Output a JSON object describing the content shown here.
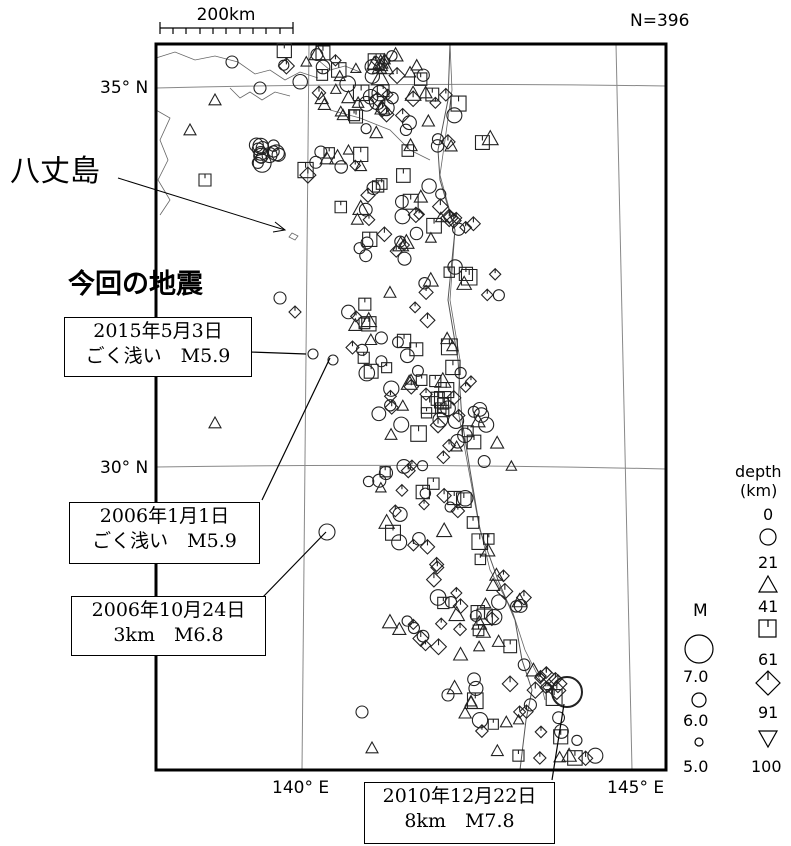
{
  "scale_bar": {
    "label": "200km"
  },
  "count_label": "N=396",
  "lat_labels": [
    "35° N",
    "30° N"
  ],
  "lon_labels": [
    "140° E",
    "145° E"
  ],
  "island_label": "八丈島",
  "heading": "今回の地震",
  "callouts": [
    {
      "line1": "2015年5月3日",
      "line2": "ごく浅い　M5.9"
    },
    {
      "line1": "2006年1月1日",
      "line2": "ごく浅い　M5.9"
    },
    {
      "line1": "2006年10月24日",
      "line2": "3km　M6.8"
    },
    {
      "line1": "2010年12月22日",
      "line2": "8km　M7.8"
    }
  ],
  "magnitude_legend": {
    "title": "M",
    "values": [
      "7.0",
      "6.0",
      "5.0"
    ]
  },
  "depth_legend": {
    "title": [
      "depth",
      "(km)"
    ],
    "values": [
      "0",
      "21",
      "41",
      "61",
      "91",
      "100"
    ],
    "symbols": [
      "circle-icon",
      "triangle-icon",
      "square-icon",
      "diamond-icon",
      "inverted-triangle-icon"
    ]
  }
}
